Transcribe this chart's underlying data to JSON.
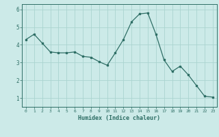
{
  "x": [
    0,
    1,
    2,
    3,
    4,
    5,
    6,
    7,
    8,
    9,
    10,
    11,
    12,
    13,
    14,
    15,
    16,
    17,
    18,
    19,
    20,
    21,
    22,
    23
  ],
  "y": [
    4.3,
    4.6,
    4.1,
    3.6,
    3.55,
    3.55,
    3.6,
    3.35,
    3.3,
    3.05,
    2.85,
    3.55,
    4.3,
    5.3,
    5.75,
    5.8,
    4.6,
    3.15,
    2.5,
    2.8,
    2.3,
    1.7,
    1.1,
    1.05
  ],
  "xlabel": "Humidex (Indice chaleur)",
  "bg_color": "#cceae8",
  "line_color": "#2e6e65",
  "grid_color": "#aad4d0",
  "ylim": [
    0.5,
    6.3
  ],
  "xlim": [
    -0.5,
    23.5
  ],
  "yticks": [
    1,
    2,
    3,
    4,
    5,
    6
  ],
  "xticks": [
    0,
    1,
    2,
    3,
    4,
    5,
    6,
    7,
    8,
    9,
    10,
    11,
    12,
    13,
    14,
    15,
    16,
    17,
    18,
    19,
    20,
    21,
    22,
    23
  ]
}
